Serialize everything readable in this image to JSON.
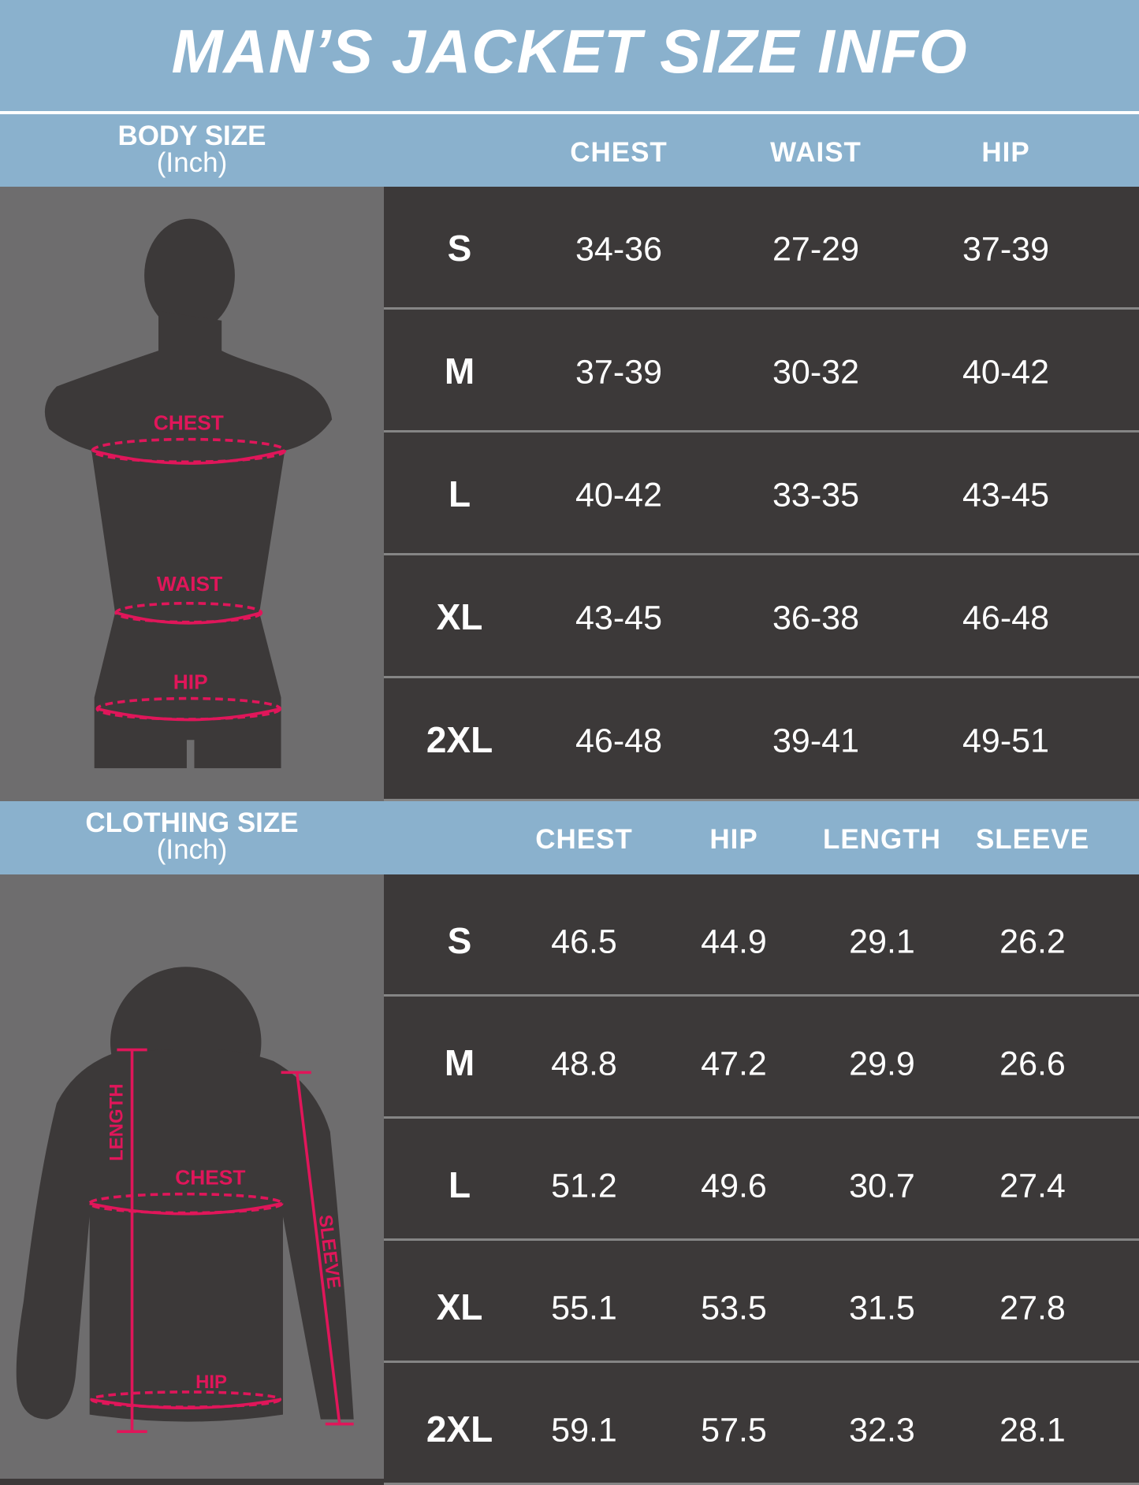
{
  "title": "MAN’S JACKET SIZE INFO",
  "colors": {
    "header_blue": "#8ab1cd",
    "panel_gray": "#6e6d6e",
    "table_dark": "#3c3939",
    "measure_pink": "#e0165a"
  },
  "body_size": {
    "label": "BODY SIZE",
    "unit": "(Inch)",
    "figure_labels": {
      "chest": "CHEST",
      "waist": "WAIST",
      "hip": "HIP"
    },
    "columns": [
      "CHEST",
      "WAIST",
      "HIP"
    ],
    "rows": [
      {
        "size": "S",
        "values": [
          "34-36",
          "27-29",
          "37-39"
        ]
      },
      {
        "size": "M",
        "values": [
          "37-39",
          "30-32",
          "40-42"
        ]
      },
      {
        "size": "L",
        "values": [
          "40-42",
          "33-35",
          "43-45"
        ]
      },
      {
        "size": "XL",
        "values": [
          "43-45",
          "36-38",
          "46-48"
        ]
      },
      {
        "size": "2XL",
        "values": [
          "46-48",
          "39-41",
          "49-51"
        ]
      }
    ]
  },
  "clothing_size": {
    "label": "CLOTHING SIZE",
    "unit": "(Inch)",
    "figure_labels": {
      "length": "LENGTH",
      "chest": "CHEST",
      "sleeve": "SLEEVE",
      "hip": "HIP"
    },
    "columns": [
      "CHEST",
      "HIP",
      "LENGTH",
      "SLEEVE"
    ],
    "rows": [
      {
        "size": "S",
        "values": [
          "46.5",
          "44.9",
          "29.1",
          "26.2"
        ]
      },
      {
        "size": "M",
        "values": [
          "48.8",
          "47.2",
          "29.9",
          "26.6"
        ]
      },
      {
        "size": "L",
        "values": [
          "51.2",
          "49.6",
          "30.7",
          "27.4"
        ]
      },
      {
        "size": "XL",
        "values": [
          "55.1",
          "53.5",
          "31.5",
          "27.8"
        ]
      },
      {
        "size": "2XL",
        "values": [
          "59.1",
          "57.5",
          "32.3",
          "28.1"
        ]
      }
    ]
  }
}
